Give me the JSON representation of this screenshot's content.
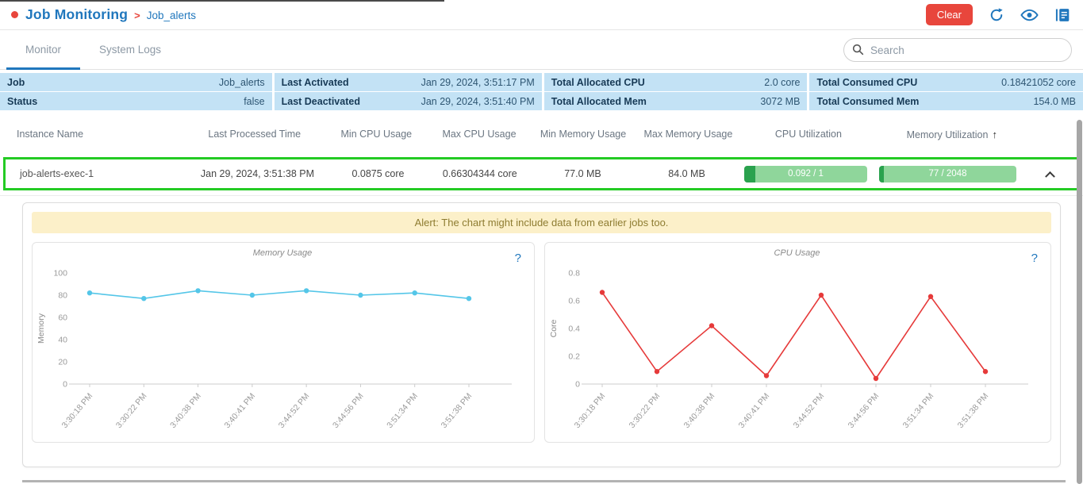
{
  "header": {
    "title": "Job Monitoring",
    "separator": ">",
    "subtitle": "Job_alerts",
    "clear_label": "Clear",
    "accent_blue": "#2077bd",
    "accent_red": "#e8463c"
  },
  "tabs": [
    {
      "label": "Monitor",
      "active": true
    },
    {
      "label": "System Logs",
      "active": false
    }
  ],
  "search": {
    "placeholder": "Search"
  },
  "summary": {
    "rows": [
      [
        {
          "label": "Job",
          "value": "Job_alerts"
        },
        {
          "label": "Last Activated",
          "value": "Jan 29, 2024, 3:51:17 PM"
        },
        {
          "label": "Total Allocated CPU",
          "value": "2.0 core"
        },
        {
          "label": "Total Consumed CPU",
          "value": "0.18421052 core"
        }
      ],
      [
        {
          "label": "Status",
          "value": "false"
        },
        {
          "label": "Last Deactivated",
          "value": "Jan 29, 2024, 3:51:40 PM"
        },
        {
          "label": "Total Allocated Mem",
          "value": "3072 MB"
        },
        {
          "label": "Total Consumed Mem",
          "value": "154.0 MB"
        }
      ]
    ]
  },
  "table": {
    "columns": [
      "Instance Name",
      "Last Processed Time",
      "Min CPU Usage",
      "Max CPU Usage",
      "Min Memory Usage",
      "Max Memory Usage",
      "CPU Utilization",
      "Memory Utilization"
    ],
    "sort_arrow": "↑",
    "row": {
      "instance_name": "job-alerts-exec-1",
      "last_processed_time": "Jan 29, 2024, 3:51:38 PM",
      "min_cpu": "0.0875 core",
      "max_cpu": "0.66304344 core",
      "min_mem": "77.0 MB",
      "max_mem": "84.0 MB",
      "cpu_utilization": {
        "label": "0.092 / 1",
        "fraction": 0.092
      },
      "memory_utilization": {
        "label": "77 / 2048",
        "fraction": 0.0376
      },
      "bar_track_color": "#8fd69b",
      "bar_fill_color": "#2aa24e",
      "highlight_border_color": "#24cb24"
    }
  },
  "alert": {
    "text": "Alert: The chart might include data from earlier jobs too."
  },
  "chart_data": [
    {
      "type": "line",
      "title": "Memory Usage",
      "help_label": "?",
      "xlabel": "",
      "ylabel": "Memory",
      "categories": [
        "3:30:18 PM",
        "3:30:22 PM",
        "3:40:38 PM",
        "3:40:41 PM",
        "3:44:52 PM",
        "3:44:56 PM",
        "3:51:34 PM",
        "3:51:38 PM"
      ],
      "values": [
        82,
        77,
        84,
        80,
        84,
        80,
        82,
        77
      ],
      "ylim": [
        0,
        100
      ],
      "yticks": [
        0,
        20,
        40,
        60,
        80,
        100
      ],
      "line_color": "#54c6e8",
      "grid": false,
      "legend_position": "none"
    },
    {
      "type": "line",
      "title": "CPU Usage",
      "help_label": "?",
      "xlabel": "",
      "ylabel": "Core",
      "categories": [
        "3:30:18 PM",
        "3:30:22 PM",
        "3:40:38 PM",
        "3:40:41 PM",
        "3:44:52 PM",
        "3:44:56 PM",
        "3:51:34 PM",
        "3:51:38 PM"
      ],
      "values": [
        0.66,
        0.09,
        0.42,
        0.06,
        0.64,
        0.04,
        0.63,
        0.09
      ],
      "ylim": [
        0,
        0.8
      ],
      "yticks": [
        0,
        0.2,
        0.4,
        0.6,
        0.8
      ],
      "line_color": "#e63a3a",
      "grid": false,
      "legend_position": "none"
    }
  ]
}
